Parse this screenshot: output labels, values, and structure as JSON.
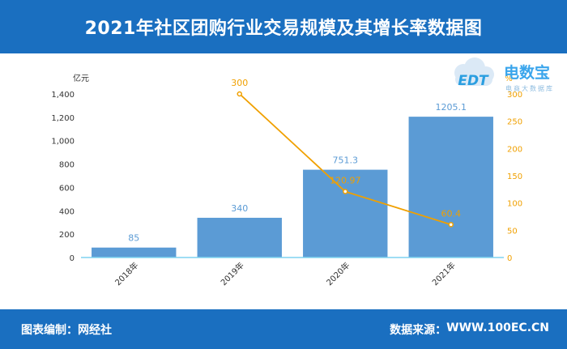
{
  "header": {
    "title": "2021年社区团购行业交易规模及其增长率数据图"
  },
  "logo": {
    "letters": "EDT",
    "brand": "电数宝",
    "tagline": "电商大数据库"
  },
  "footer": {
    "left_label": "图表编制：",
    "left_value": "网经社",
    "right_label": "数据来源：",
    "right_value": "WWW.100EC.CN"
  },
  "colors": {
    "bar": "#5b9bd5",
    "line": "#f0a000",
    "header_bg": "#1a6fc0",
    "axis": "#7fd4f0"
  },
  "chart_data": {
    "type": "bar",
    "categories": [
      "2018年",
      "2019年",
      "2020年",
      "2021年"
    ],
    "series": [
      {
        "name": "",
        "type": "bar",
        "axis": "left",
        "values": [
          85,
          340,
          751.3,
          1205.1
        ],
        "labels": [
          "85",
          "340",
          "751.3",
          "1205.1"
        ]
      },
      {
        "name": "",
        "type": "line",
        "axis": "right",
        "values": [
          null,
          300,
          120.97,
          60.4
        ],
        "labels": [
          "",
          "300",
          "120.97",
          "60.4"
        ]
      }
    ],
    "ylabel": "亿元",
    "ylabel_right": "%",
    "ylim": [
      0,
      1400
    ],
    "ylim_right": [
      0,
      300
    ],
    "yticks": [
      "0",
      "200",
      "400",
      "600",
      "800",
      "1,000",
      "1,200",
      "1,400"
    ],
    "yticks_right": [
      "0",
      "50",
      "100",
      "150",
      "200",
      "250",
      "300"
    ],
    "grid": false,
    "legend": "none"
  }
}
